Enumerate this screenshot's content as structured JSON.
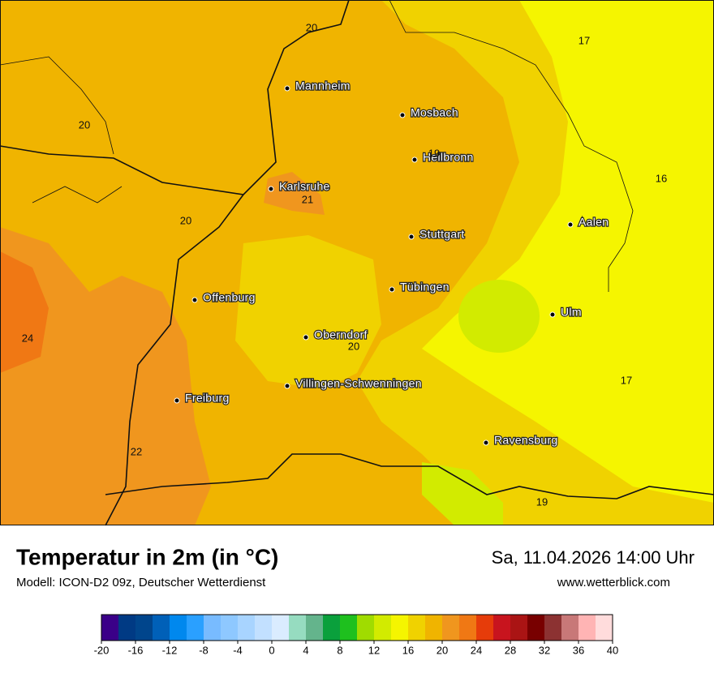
{
  "map": {
    "cities": [
      "Mannheim",
      "Mosbach",
      "Heilbronn",
      "Karlsruhe",
      "Aalen",
      "Stuttgart",
      "Tübingen",
      "Offenburg",
      "Ulm",
      "Oberndorf",
      "Villingen-Schwenningen",
      "Freiburg",
      "Ravensburg"
    ],
    "temperature_labels": [
      "20",
      "17",
      "20",
      "19",
      "21",
      "16",
      "20",
      "24",
      "20",
      "17",
      "22",
      "19"
    ]
  },
  "footer": {
    "title": "Temperatur in 2m (in °C)",
    "subtitle": "Modell: ICON-D2 09z, Deutscher Wetterdienst",
    "datetime": "Sa, 11.04.2026 14:00 Uhr",
    "website": "www.wetterblick.com"
  },
  "colorbar": {
    "range": [
      -20,
      40
    ],
    "ticks": [
      -20,
      -16,
      -12,
      -8,
      -4,
      0,
      4,
      8,
      12,
      16,
      20,
      24,
      28,
      32,
      36,
      40
    ],
    "colors": [
      "#3a0088",
      "#003a84",
      "#00458c",
      "#0060b8",
      "#0088ee",
      "#2aa0ff",
      "#78bbff",
      "#8ec8ff",
      "#a8d4ff",
      "#c2e0ff",
      "#daecff",
      "#96dcc0",
      "#64b48c",
      "#0aa03c",
      "#1ec01e",
      "#a0dc00",
      "#d2eb00",
      "#f5f500",
      "#f0d200",
      "#f0b400",
      "#f0961e",
      "#f07814",
      "#e63c0a",
      "#c8141e",
      "#aa1414",
      "#780000",
      "#8c3232",
      "#c87878",
      "#ffb4b4",
      "#ffdcdc"
    ]
  }
}
